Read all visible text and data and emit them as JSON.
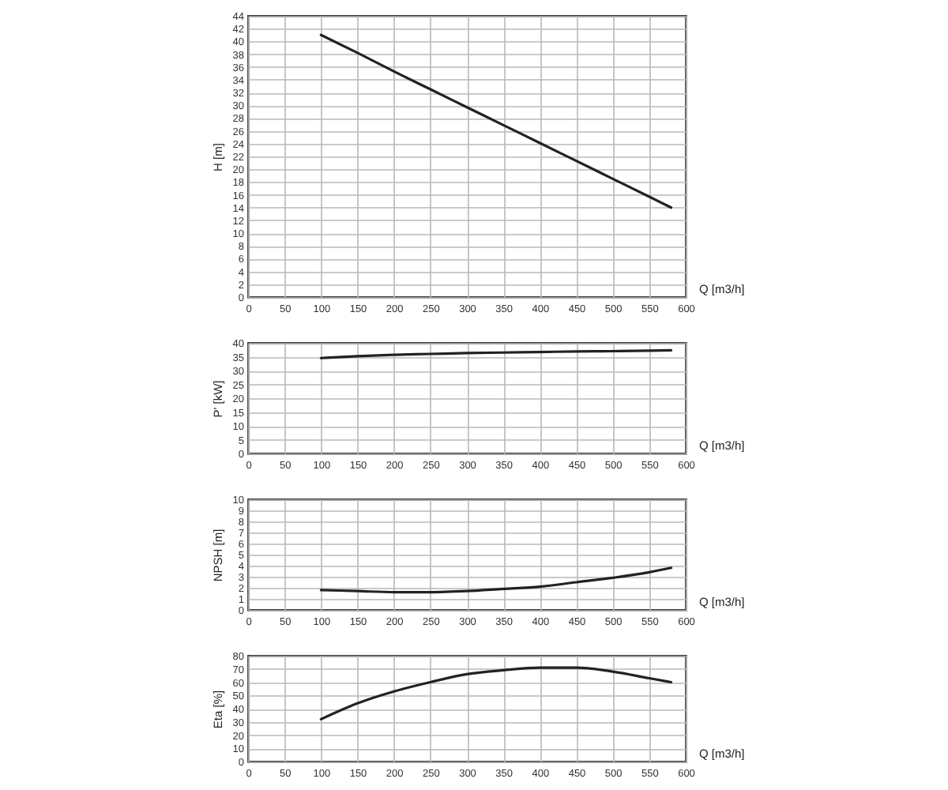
{
  "chart_data": [
    {
      "type": "line",
      "xlabel": "Q [m3/h]",
      "ylabel": "H [m]",
      "x": [
        100,
        150,
        200,
        250,
        300,
        350,
        400,
        450,
        500,
        550,
        580
      ],
      "series": [
        {
          "color": "#222222",
          "values": [
            41,
            38.2,
            35.3,
            32.5,
            29.7,
            26.9,
            24.1,
            21.3,
            18.5,
            15.7,
            14
          ]
        }
      ],
      "xlim": [
        0,
        600
      ],
      "xticks": [
        0,
        50,
        100,
        150,
        200,
        250,
        300,
        350,
        400,
        450,
        500,
        550,
        600
      ],
      "ylim": [
        0,
        44
      ],
      "yticks": [
        0,
        2,
        4,
        6,
        8,
        10,
        12,
        14,
        16,
        18,
        20,
        22,
        24,
        26,
        28,
        30,
        32,
        34,
        36,
        38,
        40,
        42,
        44
      ],
      "grid": true
    },
    {
      "type": "line",
      "xlabel": "Q [m3/h]",
      "ylabel": "P' [kW]",
      "x": [
        100,
        150,
        200,
        250,
        300,
        350,
        400,
        450,
        500,
        550,
        580
      ],
      "series": [
        {
          "color": "#222222",
          "values": [
            34.5,
            35.2,
            35.7,
            36,
            36.3,
            36.5,
            36.7,
            36.9,
            37,
            37.2,
            37.3
          ]
        }
      ],
      "xlim": [
        0,
        600
      ],
      "xticks": [
        0,
        50,
        100,
        150,
        200,
        250,
        300,
        350,
        400,
        450,
        500,
        550,
        600
      ],
      "ylim": [
        0,
        40
      ],
      "yticks": [
        0,
        5,
        10,
        15,
        20,
        25,
        30,
        35,
        40
      ],
      "grid": true
    },
    {
      "type": "line",
      "xlabel": "Q [m3/h]",
      "ylabel": "NPSH [m]",
      "x": [
        100,
        150,
        200,
        250,
        300,
        350,
        400,
        450,
        500,
        550,
        580
      ],
      "series": [
        {
          "color": "#222222",
          "values": [
            1.8,
            1.7,
            1.6,
            1.6,
            1.7,
            1.9,
            2.1,
            2.5,
            2.9,
            3.4,
            3.8
          ]
        }
      ],
      "xlim": [
        0,
        600
      ],
      "xticks": [
        0,
        50,
        100,
        150,
        200,
        250,
        300,
        350,
        400,
        450,
        500,
        550,
        600
      ],
      "ylim": [
        0,
        10
      ],
      "yticks": [
        0,
        1,
        2,
        3,
        4,
        5,
        6,
        7,
        8,
        9,
        10
      ],
      "grid": true
    },
    {
      "type": "line",
      "xlabel": "Q [m3/h]",
      "ylabel": "Eta [%]",
      "x": [
        100,
        150,
        200,
        250,
        300,
        350,
        400,
        450,
        500,
        550,
        580
      ],
      "series": [
        {
          "color": "#222222",
          "values": [
            32,
            44,
            53,
            60,
            66,
            69,
            71,
            71,
            68,
            63,
            60
          ]
        }
      ],
      "xlim": [
        0,
        600
      ],
      "xticks": [
        0,
        50,
        100,
        150,
        200,
        250,
        300,
        350,
        400,
        450,
        500,
        550,
        600
      ],
      "ylim": [
        0,
        80
      ],
      "yticks": [
        0,
        10,
        20,
        30,
        40,
        50,
        60,
        70,
        80
      ],
      "grid": true
    }
  ]
}
